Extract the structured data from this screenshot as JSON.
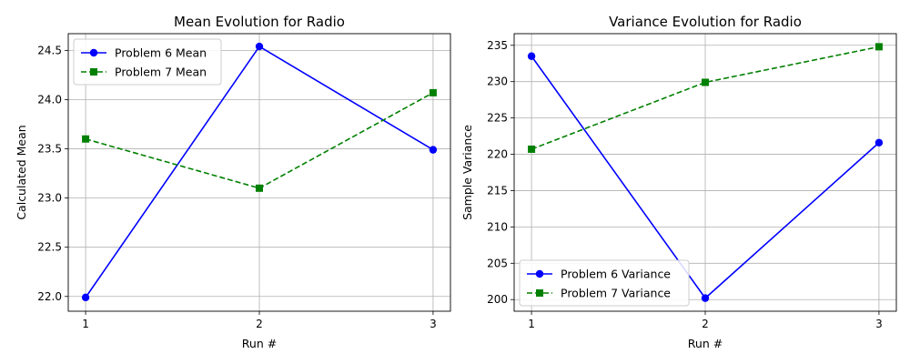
{
  "chart_data": [
    {
      "type": "line",
      "title": "Mean Evolution for Radio",
      "xlabel": "Run #",
      "ylabel": "Calculated Mean",
      "x": [
        1,
        2,
        3
      ],
      "xticks": [
        "1",
        "2",
        "3"
      ],
      "xlim": [
        0.9,
        3.1
      ],
      "ylim": [
        21.85,
        24.67
      ],
      "yticks": [
        22.0,
        22.5,
        23.0,
        23.5,
        24.0,
        24.5
      ],
      "yticklabels": [
        "22.0",
        "22.5",
        "23.0",
        "23.5",
        "24.0",
        "24.5"
      ],
      "grid": true,
      "legend_position": "upper-left",
      "series": [
        {
          "name": "Problem 6 Mean",
          "values": [
            21.99,
            24.54,
            23.49
          ],
          "color": "#0000ff",
          "marker": "circle",
          "linestyle": "solid"
        },
        {
          "name": "Problem 7 Mean",
          "values": [
            23.6,
            23.1,
            24.07
          ],
          "color": "#008000",
          "marker": "square",
          "linestyle": "dashed"
        }
      ]
    },
    {
      "type": "line",
      "title": "Variance Evolution for Radio",
      "xlabel": "Run #",
      "ylabel": "Sample Variance",
      "x": [
        1,
        2,
        3
      ],
      "xticks": [
        "1",
        "2",
        "3"
      ],
      "xlim": [
        0.9,
        3.1
      ],
      "ylim": [
        198.4,
        236.6
      ],
      "yticks": [
        200,
        205,
        210,
        215,
        220,
        225,
        230,
        235
      ],
      "yticklabels": [
        "200",
        "205",
        "210",
        "215",
        "220",
        "225",
        "230",
        "235"
      ],
      "grid": true,
      "legend_position": "lower-left",
      "series": [
        {
          "name": "Problem 6 Variance",
          "values": [
            233.5,
            200.2,
            221.6
          ],
          "color": "#0000ff",
          "marker": "circle",
          "linestyle": "solid"
        },
        {
          "name": "Problem 7 Variance",
          "values": [
            220.7,
            229.9,
            234.8
          ],
          "color": "#008000",
          "marker": "square",
          "linestyle": "dashed"
        }
      ]
    }
  ]
}
